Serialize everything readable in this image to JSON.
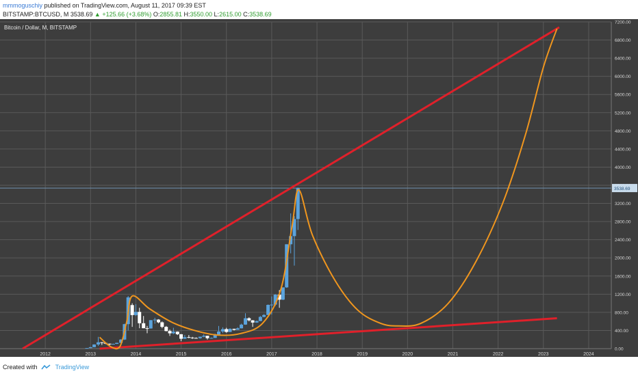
{
  "header": {
    "user": "mmmoguschiy",
    "published": "published on TradingView.com, August 11, 2017 09:39 EST",
    "symbol": "BITSTAMP:BTCUSD, M",
    "last": "3538.69",
    "change": "▲ +125.66 (+3.68%)",
    "ohlc": {
      "o_label": "O:",
      "o": "2855.81",
      "h_label": "H:",
      "h": "3550.00",
      "l_label": "L:",
      "l": "2615.00",
      "c_label": "C:",
      "c": "3538.69"
    }
  },
  "footer": {
    "created": "Created with",
    "brand": "TradingView"
  },
  "chart_data": {
    "type": "candlestick",
    "title": "Bitcoin / Dollar, M, BITSTAMP",
    "x_ticks": [
      "2012",
      "2013",
      "2014",
      "2015",
      "2016",
      "2017",
      "2018",
      "2019",
      "2020",
      "2021",
      "2022",
      "2023",
      "2024"
    ],
    "y_ticks": [
      "0.00",
      "400.00",
      "800.00",
      "1200.00",
      "1600.00",
      "2000.00",
      "2400.00",
      "2800.00",
      "3200.00",
      "3600.00",
      "4000.00",
      "4400.00",
      "4800.00",
      "5200.00",
      "5600.00",
      "6000.00",
      "6400.00",
      "6800.00",
      "7200.00"
    ],
    "xlim": [
      2011.0,
      2024.5
    ],
    "ylim": [
      0,
      7200
    ],
    "price_label": "3538.69",
    "grid": true,
    "candles": [
      {
        "t": 2012.92,
        "o": 12,
        "h": 14,
        "l": 11,
        "c": 13
      },
      {
        "t": 2013.0,
        "o": 13,
        "h": 35,
        "l": 13,
        "c": 33
      },
      {
        "t": 2013.08,
        "o": 33,
        "h": 95,
        "l": 30,
        "c": 92
      },
      {
        "t": 2013.17,
        "o": 92,
        "h": 260,
        "l": 60,
        "c": 140
      },
      {
        "t": 2013.25,
        "o": 140,
        "h": 145,
        "l": 80,
        "c": 128
      },
      {
        "t": 2013.33,
        "o": 128,
        "h": 130,
        "l": 100,
        "c": 110
      },
      {
        "t": 2013.42,
        "o": 110,
        "h": 112,
        "l": 65,
        "c": 97
      },
      {
        "t": 2013.5,
        "o": 97,
        "h": 110,
        "l": 90,
        "c": 105
      },
      {
        "t": 2013.58,
        "o": 105,
        "h": 130,
        "l": 102,
        "c": 128
      },
      {
        "t": 2013.67,
        "o": 128,
        "h": 210,
        "l": 115,
        "c": 200
      },
      {
        "t": 2013.75,
        "o": 200,
        "h": 550,
        "l": 190,
        "c": 540
      },
      {
        "t": 2013.83,
        "o": 540,
        "h": 1160,
        "l": 400,
        "c": 1130
      },
      {
        "t": 2013.92,
        "o": 960,
        "h": 1000,
        "l": 480,
        "c": 740
      },
      {
        "t": 2014.0,
        "o": 740,
        "h": 980,
        "l": 720,
        "c": 810
      },
      {
        "t": 2014.08,
        "o": 810,
        "h": 900,
        "l": 450,
        "c": 560
      },
      {
        "t": 2014.17,
        "o": 560,
        "h": 720,
        "l": 450,
        "c": 450
      },
      {
        "t": 2014.25,
        "o": 450,
        "h": 500,
        "l": 340,
        "c": 445
      },
      {
        "t": 2014.33,
        "o": 445,
        "h": 630,
        "l": 440,
        "c": 628
      },
      {
        "t": 2014.42,
        "o": 628,
        "h": 680,
        "l": 550,
        "c": 640
      },
      {
        "t": 2014.5,
        "o": 640,
        "h": 650,
        "l": 560,
        "c": 580
      },
      {
        "t": 2014.58,
        "o": 580,
        "h": 600,
        "l": 450,
        "c": 480
      },
      {
        "t": 2014.67,
        "o": 480,
        "h": 500,
        "l": 380,
        "c": 388
      },
      {
        "t": 2014.75,
        "o": 388,
        "h": 420,
        "l": 280,
        "c": 338
      },
      {
        "t": 2014.83,
        "o": 338,
        "h": 460,
        "l": 320,
        "c": 375
      },
      {
        "t": 2014.92,
        "o": 375,
        "h": 380,
        "l": 300,
        "c": 318
      },
      {
        "t": 2015.0,
        "o": 318,
        "h": 320,
        "l": 165,
        "c": 218
      },
      {
        "t": 2015.08,
        "o": 218,
        "h": 300,
        "l": 215,
        "c": 254
      },
      {
        "t": 2015.17,
        "o": 254,
        "h": 300,
        "l": 230,
        "c": 244
      },
      {
        "t": 2015.25,
        "o": 244,
        "h": 260,
        "l": 215,
        "c": 236
      },
      {
        "t": 2015.33,
        "o": 236,
        "h": 248,
        "l": 225,
        "c": 230
      },
      {
        "t": 2015.42,
        "o": 230,
        "h": 265,
        "l": 220,
        "c": 263
      },
      {
        "t": 2015.5,
        "o": 263,
        "h": 315,
        "l": 252,
        "c": 284
      },
      {
        "t": 2015.58,
        "o": 284,
        "h": 285,
        "l": 200,
        "c": 230
      },
      {
        "t": 2015.67,
        "o": 230,
        "h": 248,
        "l": 225,
        "c": 236
      },
      {
        "t": 2015.75,
        "o": 236,
        "h": 330,
        "l": 235,
        "c": 310
      },
      {
        "t": 2015.83,
        "o": 310,
        "h": 500,
        "l": 300,
        "c": 378
      },
      {
        "t": 2015.92,
        "o": 378,
        "h": 470,
        "l": 345,
        "c": 430
      },
      {
        "t": 2016.0,
        "o": 430,
        "h": 460,
        "l": 350,
        "c": 368
      },
      {
        "t": 2016.08,
        "o": 368,
        "h": 450,
        "l": 365,
        "c": 437
      },
      {
        "t": 2016.17,
        "o": 437,
        "h": 440,
        "l": 400,
        "c": 416
      },
      {
        "t": 2016.25,
        "o": 416,
        "h": 470,
        "l": 415,
        "c": 448
      },
      {
        "t": 2016.33,
        "o": 448,
        "h": 550,
        "l": 445,
        "c": 530
      },
      {
        "t": 2016.42,
        "o": 530,
        "h": 780,
        "l": 525,
        "c": 670
      },
      {
        "t": 2016.5,
        "o": 670,
        "h": 690,
        "l": 600,
        "c": 624
      },
      {
        "t": 2016.58,
        "o": 624,
        "h": 630,
        "l": 480,
        "c": 575
      },
      {
        "t": 2016.67,
        "o": 575,
        "h": 620,
        "l": 570,
        "c": 608
      },
      {
        "t": 2016.75,
        "o": 608,
        "h": 720,
        "l": 605,
        "c": 700
      },
      {
        "t": 2016.83,
        "o": 700,
        "h": 760,
        "l": 690,
        "c": 742
      },
      {
        "t": 2016.92,
        "o": 742,
        "h": 975,
        "l": 740,
        "c": 964
      },
      {
        "t": 2017.0,
        "o": 964,
        "h": 1150,
        "l": 750,
        "c": 970
      },
      {
        "t": 2017.08,
        "o": 970,
        "h": 1200,
        "l": 940,
        "c": 1190
      },
      {
        "t": 2017.17,
        "o": 1190,
        "h": 1290,
        "l": 900,
        "c": 1080
      },
      {
        "t": 2017.25,
        "o": 1080,
        "h": 1350,
        "l": 1070,
        "c": 1350
      },
      {
        "t": 2017.33,
        "o": 1350,
        "h": 2300,
        "l": 1340,
        "c": 2300
      },
      {
        "t": 2017.42,
        "o": 2300,
        "h": 2980,
        "l": 2100,
        "c": 2480
      },
      {
        "t": 2017.5,
        "o": 2480,
        "h": 2920,
        "l": 1830,
        "c": 2856
      },
      {
        "t": 2017.58,
        "o": 2856,
        "h": 3550,
        "l": 2615,
        "c": 3539
      }
    ],
    "curve_points": [
      [
        2013.2,
        250
      ],
      [
        2013.45,
        40
      ],
      [
        2013.65,
        50
      ],
      [
        2013.8,
        600
      ],
      [
        2013.92,
        1160
      ],
      [
        2014.3,
        880
      ],
      [
        2014.8,
        580
      ],
      [
        2015.3,
        400
      ],
      [
        2015.8,
        300
      ],
      [
        2016.3,
        330
      ],
      [
        2016.8,
        560
      ],
      [
        2017.2,
        1300
      ],
      [
        2017.45,
        2700
      ],
      [
        2017.6,
        3500
      ],
      [
        2017.9,
        2500
      ],
      [
        2018.4,
        1500
      ],
      [
        2018.9,
        850
      ],
      [
        2019.4,
        560
      ],
      [
        2019.8,
        500
      ],
      [
        2020.3,
        560
      ],
      [
        2020.9,
        1000
      ],
      [
        2021.5,
        1900
      ],
      [
        2022.1,
        3200
      ],
      [
        2022.6,
        4700
      ],
      [
        2023.0,
        6200
      ],
      [
        2023.3,
        7050
      ]
    ],
    "upper_trendline": [
      [
        2011.5,
        0
      ],
      [
        2023.35,
        7080
      ]
    ],
    "lower_trendline": [
      [
        2013.2,
        0
      ],
      [
        2023.3,
        670
      ]
    ]
  }
}
